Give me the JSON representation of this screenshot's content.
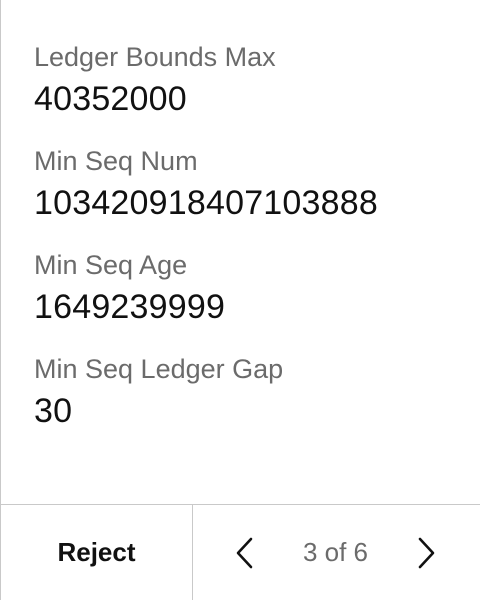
{
  "fields": [
    {
      "label": "Ledger Bounds Max",
      "value": "40352000"
    },
    {
      "label": "Min Seq Num",
      "value": "103420918407103888"
    },
    {
      "label": "Min Seq Age",
      "value": "1649239999"
    },
    {
      "label": "Min Seq Ledger Gap",
      "value": "30"
    }
  ],
  "footer": {
    "reject_label": "Reject",
    "page_indicator": "3 of 6",
    "prev_icon": "chevron-left-icon",
    "next_icon": "chevron-right-icon"
  }
}
